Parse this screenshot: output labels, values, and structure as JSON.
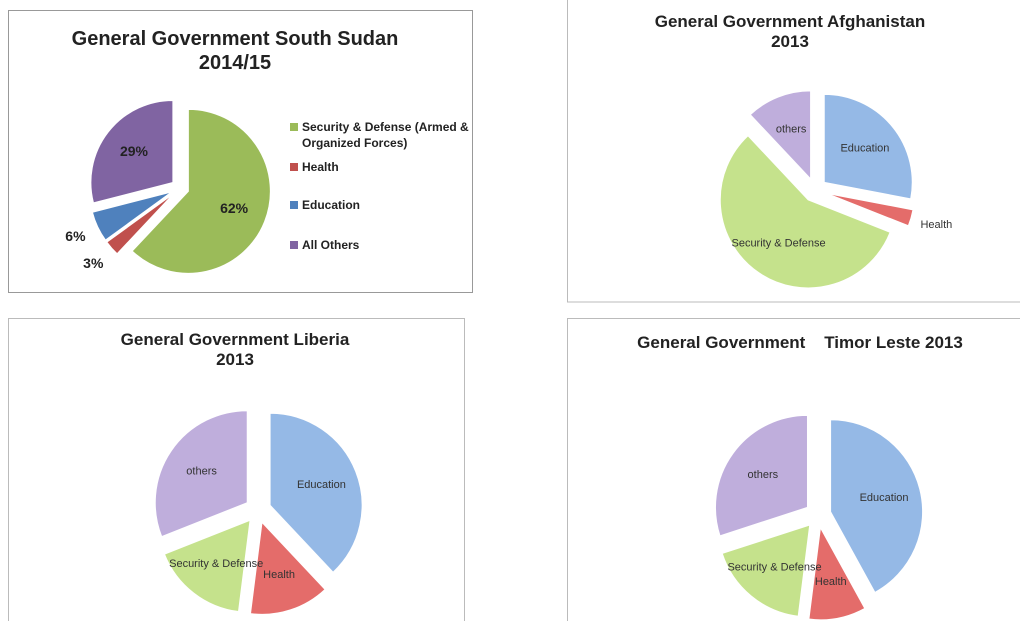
{
  "chart_data": [
    {
      "type": "pie",
      "title": "General Government South Sudan 2014/15",
      "categories": [
        "Security & Defense (Armed & Organized Forces)",
        "Health",
        "Education",
        "All Others"
      ],
      "values": [
        62,
        3,
        6,
        29
      ],
      "value_labels": [
        "62%",
        "3%",
        "6%",
        "29%"
      ],
      "colors": [
        "#9bbb59",
        "#c0504d",
        "#4f81bd",
        "#8064a2"
      ],
      "legend": "right"
    },
    {
      "type": "pie",
      "title": "General Government Afghanistan 2013",
      "categories": [
        "Education",
        "Health",
        "Security & Defense",
        "others"
      ],
      "values": [
        28,
        3,
        57,
        12
      ],
      "colors": [
        "#95b9e6",
        "#e46c6a",
        "#c5e28c",
        "#bfaedc"
      ]
    },
    {
      "type": "pie",
      "title": "General Government Liberia 2013",
      "categories": [
        "Education",
        "Health",
        "Security & Defense",
        "others"
      ],
      "values": [
        38,
        14,
        17,
        31
      ],
      "colors": [
        "#95b9e6",
        "#e46c6a",
        "#c5e28c",
        "#bfaedc"
      ]
    },
    {
      "type": "pie",
      "title": "General Government    Timor Leste 2013",
      "categories": [
        "Education",
        "Health",
        "Security & Defense",
        "others"
      ],
      "values": [
        42,
        10,
        18,
        30
      ],
      "colors": [
        "#95b9e6",
        "#e46c6a",
        "#c5e28c",
        "#bfaedc"
      ]
    }
  ]
}
